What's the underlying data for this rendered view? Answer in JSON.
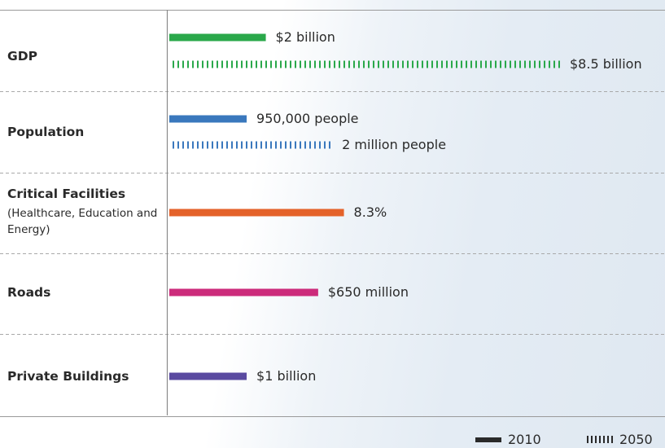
{
  "chart_data": {
    "type": "bar",
    "categories": [
      {
        "label": "GDP",
        "sublabel": ""
      },
      {
        "label": "Population",
        "sublabel": ""
      },
      {
        "label": "Critical Facilities",
        "sublabel": "(Healthcare, Education and Energy)"
      },
      {
        "label": "Roads",
        "sublabel": ""
      },
      {
        "label": "Private Buildings",
        "sublabel": ""
      }
    ],
    "series": [
      {
        "name": "2010",
        "style": "solid",
        "values": [
          2,
          0.95,
          8.3,
          0.65,
          1
        ],
        "labels": [
          "$2 billion",
          "950,000 people",
          "8.3%",
          "$650 million",
          "$1 billion"
        ]
      },
      {
        "name": "2050",
        "style": "dashed",
        "values": [
          8.5,
          2,
          null,
          null,
          null
        ],
        "labels": [
          "$8.5 billion",
          "2 million people",
          null,
          null,
          null
        ]
      }
    ],
    "bar_fraction_of_max": {
      "2010": [
        0.247,
        0.198,
        0.447,
        0.381,
        0.198
      ],
      "2050": [
        1.0,
        0.417,
        null,
        null,
        null
      ]
    },
    "colors": [
      "#2aa84a",
      "#3a78bd",
      "#e4622a",
      "#cc2b7b",
      "#5a4aa0"
    ],
    "grid": "dashed horizontal separators",
    "legend": {
      "position": "bottom-right",
      "items": [
        {
          "name": "2010",
          "style": "solid"
        },
        {
          "name": "2050",
          "style": "dashed"
        }
      ]
    }
  }
}
